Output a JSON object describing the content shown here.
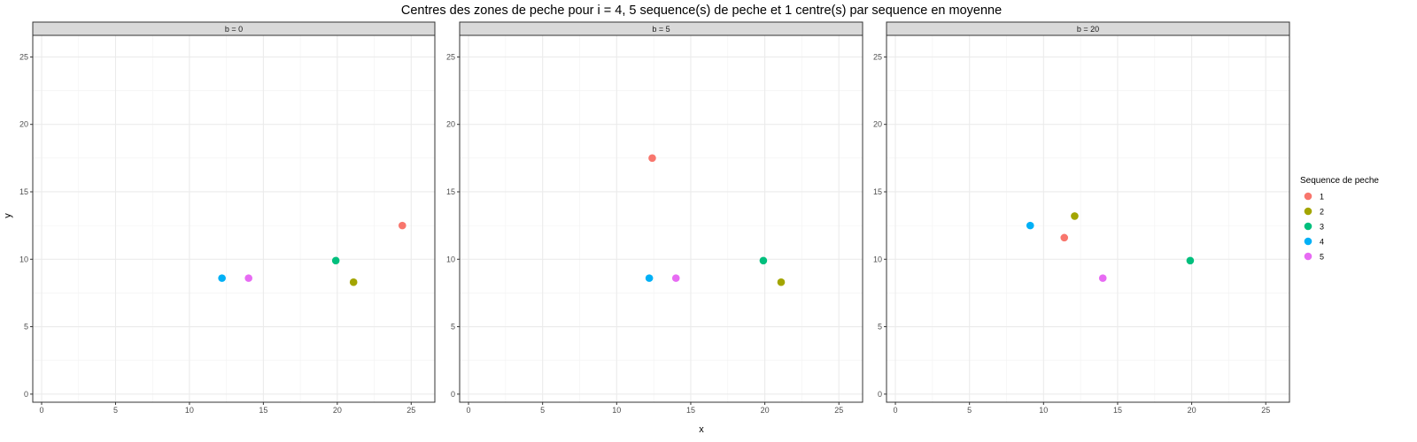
{
  "chart_data": {
    "type": "scatter",
    "title": "Centres des zones de peche pour i = 4, 5 sequence(s) de peche et 1 centre(s) par sequence en moyenne",
    "xlabel": "x",
    "ylabel": "y",
    "xlim": [
      -0.6,
      26.6
    ],
    "ylim": [
      -0.6,
      26.6
    ],
    "x_ticks": [
      0,
      5,
      10,
      15,
      20,
      25
    ],
    "y_ticks": [
      0,
      5,
      10,
      15,
      20,
      25
    ],
    "grid": true,
    "legend": {
      "title": "Sequence de peche",
      "position": "right",
      "entries": [
        {
          "label": "1",
          "color": "#F8766D"
        },
        {
          "label": "2",
          "color": "#A3A500"
        },
        {
          "label": "3",
          "color": "#00BF7D"
        },
        {
          "label": "4",
          "color": "#00B0F6"
        },
        {
          "label": "5",
          "color": "#E76BF3"
        }
      ]
    },
    "facets": [
      {
        "label": "b = 0",
        "points": [
          {
            "series": "1",
            "x": 24.4,
            "y": 12.5
          },
          {
            "series": "2",
            "x": 21.1,
            "y": 8.3
          },
          {
            "series": "3",
            "x": 19.9,
            "y": 9.9
          },
          {
            "series": "4",
            "x": 12.2,
            "y": 8.6
          },
          {
            "series": "5",
            "x": 14.0,
            "y": 8.6
          }
        ]
      },
      {
        "label": "b = 5",
        "points": [
          {
            "series": "1",
            "x": 12.4,
            "y": 17.5
          },
          {
            "series": "2",
            "x": 21.1,
            "y": 8.3
          },
          {
            "series": "3",
            "x": 19.9,
            "y": 9.9
          },
          {
            "series": "4",
            "x": 12.2,
            "y": 8.6
          },
          {
            "series": "5",
            "x": 14.0,
            "y": 8.6
          }
        ]
      },
      {
        "label": "b = 20",
        "points": [
          {
            "series": "1",
            "x": 11.4,
            "y": 11.6
          },
          {
            "series": "2",
            "x": 12.1,
            "y": 13.2
          },
          {
            "series": "3",
            "x": 19.9,
            "y": 9.9
          },
          {
            "series": "4",
            "x": 9.1,
            "y": 12.5
          },
          {
            "series": "5",
            "x": 14.0,
            "y": 8.6
          }
        ]
      }
    ]
  }
}
